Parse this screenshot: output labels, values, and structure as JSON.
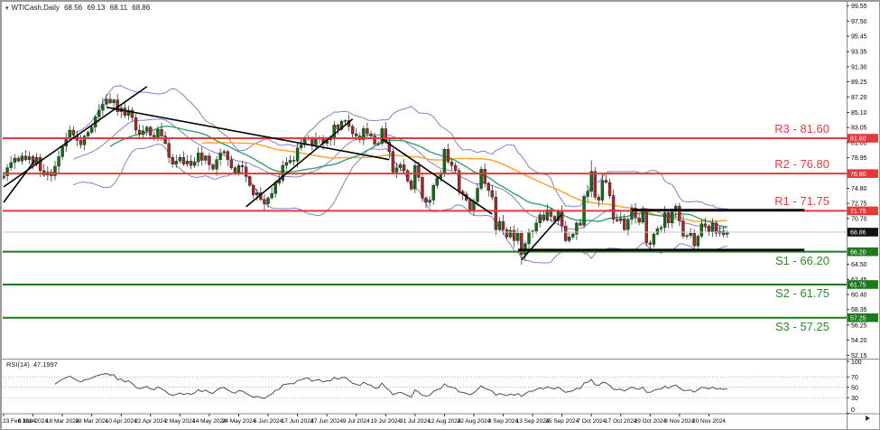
{
  "header": {
    "marker": "▾",
    "symbol": "WTICash,Daily",
    "open": "68.56",
    "high": "69.13",
    "low": "68.11",
    "close": "68.86"
  },
  "price_axis": {
    "ticks": [
      99.55,
      97.5,
      95.45,
      93.35,
      91.3,
      89.25,
      87.2,
      85.1,
      83.05,
      81.0,
      78.95,
      74.8,
      72.75,
      70.7,
      64.5,
      62.45,
      60.4,
      58.35,
      56.25,
      54.2,
      52.15
    ],
    "badges": [
      {
        "text": "81.60",
        "price": 81.6,
        "type": "resistance"
      },
      {
        "text": "76.80",
        "price": 76.8,
        "type": "resistance"
      },
      {
        "text": "71.75",
        "price": 71.75,
        "type": "resistance"
      },
      {
        "text": "68.86",
        "price": 68.86,
        "type": "current"
      },
      {
        "text": "66.20",
        "price": 66.2,
        "type": "support"
      },
      {
        "text": "61.75",
        "price": 61.75,
        "type": "support"
      },
      {
        "text": "57.25",
        "price": 57.25,
        "type": "support"
      }
    ]
  },
  "date_axis": {
    "labels": [
      "23 Feb 2024",
      "6 Mar 2024",
      "18 Mar 2024",
      "28 Mar 2024",
      "10 Apr 2024",
      "22 Apr 2024",
      "2 May 2024",
      "14 May 2024",
      "24 May 2024",
      "5 Jun 2024",
      "17 Jun 2024",
      "27 Jun 2024",
      "9 Jul 2024",
      "19 Jul 2024",
      "31 Jul 2024",
      "12 Aug 2024",
      "22 Aug 2024",
      "3 Sep 2024",
      "13 Sep 2024",
      "25 Sep 2024",
      "7 Oct 2024",
      "17 Oct 2024",
      "29 Oct 2024",
      "8 Nov 2024",
      "20 Nov 2024"
    ],
    "bars_per_label": 8,
    "scroll_marker": "▸"
  },
  "rsi_pane": {
    "indicator_label": "RSI(14)",
    "value_label": "47.1997",
    "axis_labels": [
      100,
      70,
      50,
      30,
      0
    ],
    "level_lines": [
      70,
      50,
      30
    ],
    "range": [
      0,
      100
    ]
  },
  "colors": {
    "resistance": "#e23b3b",
    "support": "#1f7a1f",
    "resistance_text": "#e23b3b",
    "support_text": "#2d8a2d",
    "bull": "#156b15",
    "bear": "#9e2b2b",
    "wick": "#1c1c1c",
    "bollinger": "#8181cc",
    "ma_fast": "#35a06a",
    "ma_slow": "#ffa01e",
    "trend": "#000000",
    "current_price_line": "#c8c8c8",
    "badge_current": "#111111",
    "rsi_line": "#4d4d4d",
    "axis_text": "#000000",
    "separator": "#888888"
  },
  "chart_data": {
    "type": "candlestick",
    "symbol": "WTICash",
    "timeframe": "Daily",
    "title": "WTICash,Daily 68.56 69.13 68.11 68.86",
    "ylim": [
      52.15,
      99.55
    ],
    "x_start_label": "23 Feb 2024",
    "x_end_label": "20 Nov 2024",
    "grid": "off",
    "closes": [
      76.5,
      77.6,
      78.3,
      78.9,
      78.5,
      79.2,
      78.7,
      79.1,
      78.1,
      79.0,
      77.2,
      76.6,
      77.0,
      76.5,
      77.8,
      79.1,
      80.5,
      81.6,
      82.7,
      82.0,
      81.3,
      80.7,
      81.9,
      82.4,
      83.1,
      84.5,
      85.4,
      86.2,
      86.9,
      86.4,
      86.8,
      85.2,
      85.7,
      84.7,
      85.4,
      84.4,
      82.7,
      82.1,
      82.6,
      83.1,
      82.0,
      81.6,
      82.8,
      81.9,
      80.9,
      79.0,
      78.1,
      78.5,
      79.0,
      78.1,
      78.5,
      77.9,
      78.4,
      79.6,
      78.6,
      79.2,
      78.0,
      77.4,
      78.7,
      79.6,
      79.8,
      78.7,
      77.6,
      76.9,
      77.9,
      77.7,
      76.4,
      75.2,
      73.9,
      74.2,
      73.3,
      72.7,
      73.5,
      74.1,
      75.5,
      75.9,
      77.9,
      78.3,
      78.6,
      78.5,
      80.3,
      80.7,
      81.6,
      81.7,
      80.7,
      81.5,
      81.6,
      80.9,
      81.5,
      81.5,
      83.4,
      82.8,
      83.9,
      84.0,
      83.2,
      82.2,
      81.9,
      81.4,
      82.9,
      82.2,
      81.9,
      80.8,
      80.9,
      82.9,
      81.1,
      79.8,
      77.0,
      77.6,
      78.0,
      77.2,
      75.8,
      74.7,
      77.9,
      76.3,
      73.5,
      72.9,
      73.2,
      75.2,
      76.2,
      76.8,
      80.1,
      78.4,
      77.9,
      77.2,
      74.4,
      74.0,
      73.2,
      71.9,
      73.0,
      74.8,
      77.4,
      75.5,
      74.5,
      73.6,
      69.2,
      70.3,
      69.2,
      68.2,
      69.1,
      67.7,
      68.7,
      65.8,
      67.3,
      68.9,
      69.0,
      70.1,
      71.2,
      70.5,
      71.9,
      71.0,
      70.4,
      71.6,
      69.7,
      67.7,
      68.2,
      68.6,
      70.1,
      69.8,
      73.7,
      74.4,
      77.1,
      73.6,
      73.2,
      75.9,
      75.6,
      73.8,
      70.6,
      70.4,
      70.7,
      69.2,
      70.6,
      72.1,
      70.8,
      70.2,
      71.8,
      67.4,
      67.2,
      68.6,
      69.3,
      69.5,
      71.5,
      70.1,
      71.7,
      72.4,
      70.4,
      68.3,
      68.4,
      68.7,
      67.0,
      68.3,
      70.0,
      69.7,
      68.9,
      70.1,
      68.7,
      69.0,
      68.5,
      68.86
    ],
    "current_bar": {
      "open": 68.56,
      "high": 69.13,
      "low": 68.11,
      "close": 68.86
    },
    "wick_extremes": {
      "april_peak_high": 87.6,
      "september_low": 64.45,
      "october_spike_high": 78.6
    },
    "overlays": {
      "bollinger_period": 20,
      "bollinger_deviation": 2,
      "ma_fast_period": 30,
      "ma_slow_period": 55
    },
    "rsi_period": 14,
    "rsi_current": 47.1997,
    "levels": [
      {
        "id": "R3",
        "label": "R3 - 81.60",
        "price": 81.6,
        "type": "resistance"
      },
      {
        "id": "R2",
        "label": "R2 - 76.80",
        "price": 76.8,
        "type": "resistance"
      },
      {
        "id": "R1",
        "label": "R1 - 71.75",
        "price": 71.75,
        "type": "resistance"
      },
      {
        "id": "S1",
        "label": "S1 - 66.20",
        "price": 66.2,
        "type": "support"
      },
      {
        "id": "S2",
        "label": "S2 - 61.75",
        "price": 61.75,
        "type": "support"
      },
      {
        "id": "S3",
        "label": "S3 - 57.25",
        "price": 57.25,
        "type": "support"
      }
    ],
    "current_price": 68.86,
    "trend_lines": [
      {
        "name": "ascending-channel-upper",
        "x1": 0,
        "p1": 75.0,
        "x2": 39,
        "p2": 88.6,
        "thick": false
      },
      {
        "name": "ascending-left-short",
        "x1": 0,
        "p1": 72.9,
        "x2": 8.5,
        "p2": 78.6,
        "thick": false
      },
      {
        "name": "descending-april-peak",
        "x1": 28,
        "p1": 85.8,
        "x2": 105,
        "p2": 78.7,
        "thick": false
      },
      {
        "name": "ascending-june-rally",
        "x1": 66,
        "p1": 72.3,
        "x2": 95,
        "p2": 84.2,
        "thick": false
      },
      {
        "name": "descending-july-august",
        "x1": 103,
        "p1": 81.5,
        "x2": 133,
        "p2": 71.3,
        "thick": false
      },
      {
        "name": "ascending-september",
        "x1": 141,
        "p1": 65.1,
        "x2": 152,
        "p2": 71.3,
        "thick": false
      },
      {
        "name": "horizontal-resistance",
        "x1": 171,
        "p1": 71.85,
        "x2": 218,
        "p2": 71.85,
        "thick": true
      },
      {
        "name": "horizontal-support",
        "x1": 140,
        "p1": 66.45,
        "x2": 218,
        "p2": 66.45,
        "thick": true
      }
    ]
  }
}
